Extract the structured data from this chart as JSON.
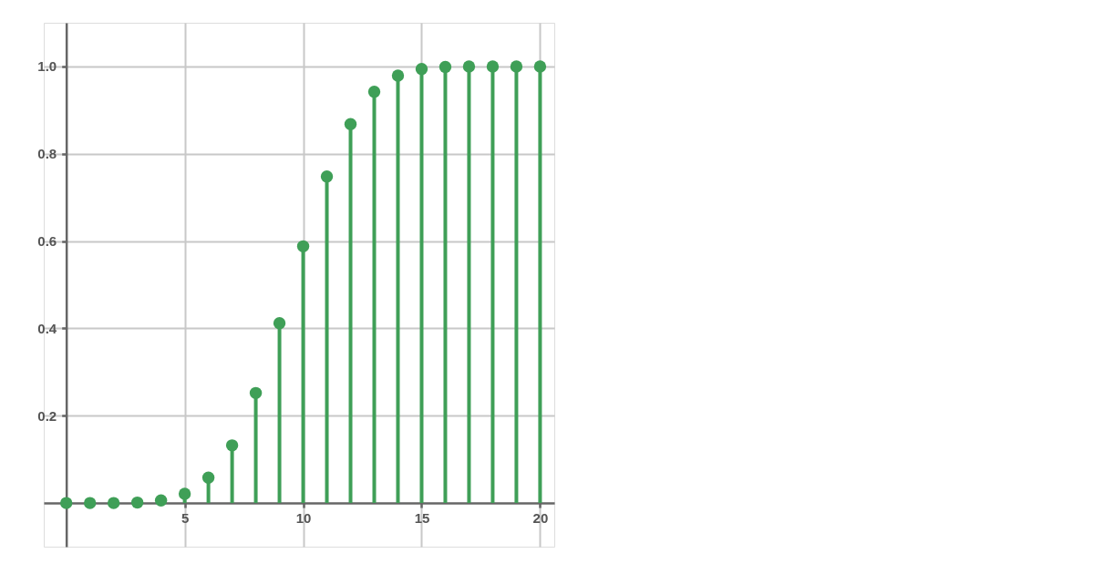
{
  "chart_data": {
    "type": "lollipop",
    "x": [
      0,
      1,
      2,
      3,
      4,
      5,
      6,
      7,
      8,
      9,
      10,
      11,
      12,
      13,
      14,
      15,
      16,
      17,
      18,
      19,
      20
    ],
    "series": [
      {
        "color": "#3f9f57",
        "values": [
          0,
          0,
          0,
          0.001,
          0.006,
          0.021,
          0.058,
          0.132,
          0.252,
          0.412,
          0.588,
          0.748,
          0.868,
          0.942,
          0.979,
          0.994,
          0.999,
          1.0,
          1.0,
          1.0,
          1.0
        ]
      }
    ],
    "xlim": [
      -0.95,
      20.6
    ],
    "ylim": [
      -0.1,
      1.1
    ],
    "xticks": [
      5,
      10,
      15,
      20
    ],
    "yticks": [
      0.2,
      0.4,
      0.6,
      0.8,
      {
        "value": 1.0,
        "label": "1.0"
      }
    ],
    "grid": true,
    "marker": "circle"
  }
}
